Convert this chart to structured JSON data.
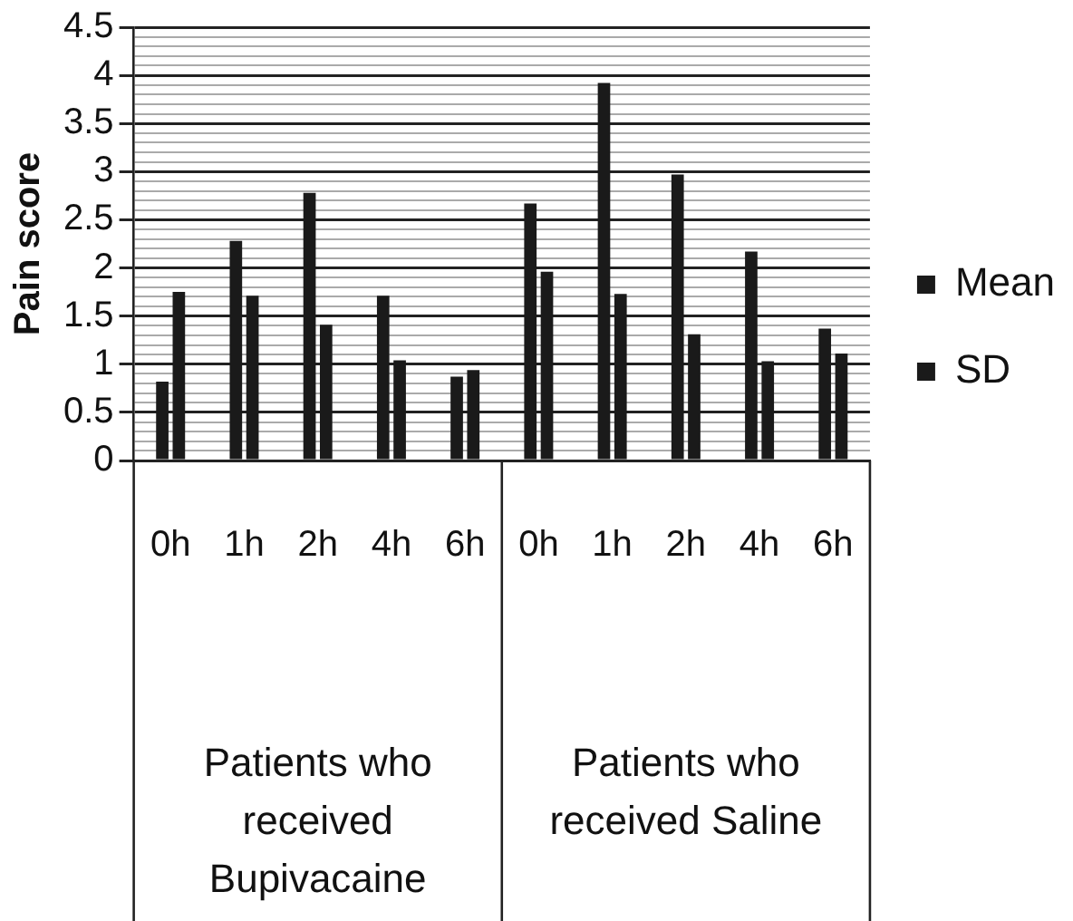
{
  "chart_data": {
    "type": "bar",
    "ylabel": "Pain score",
    "categories": [
      "0h",
      "1h",
      "2h",
      "4h",
      "6h",
      "0h",
      "1h",
      "2h",
      "4h",
      "6h"
    ],
    "series": [
      {
        "name": "Mean",
        "color": "#1a1a1a",
        "values": [
          0.82,
          2.28,
          2.78,
          1.71,
          0.87,
          2.67,
          3.92,
          2.97,
          2.17,
          1.37
        ]
      },
      {
        "name": "SD",
        "color": "#1a1a1a",
        "values": [
          1.75,
          1.71,
          1.41,
          1.04,
          0.94,
          1.96,
          1.73,
          1.31,
          1.03,
          1.11
        ]
      }
    ],
    "ylim": [
      0,
      4.5
    ],
    "yticks": [
      0,
      {
        "value": 0.1,
        "label": null
      },
      {
        "value": 0.2,
        "label": null
      },
      {
        "value": 0.3,
        "label": null
      },
      {
        "value": 0.4,
        "label": null
      },
      0.5,
      {
        "value": 0.6,
        "label": null
      },
      {
        "value": 0.7,
        "label": null
      },
      {
        "value": 0.8,
        "label": null
      },
      {
        "value": 0.9,
        "label": null
      },
      1,
      {
        "value": 1.1,
        "label": null
      },
      {
        "value": 1.2,
        "label": null
      },
      {
        "value": 1.3,
        "label": null
      },
      {
        "value": 1.4,
        "label": null
      },
      1.5,
      {
        "value": 1.6,
        "label": null
      },
      {
        "value": 1.7,
        "label": null
      },
      {
        "value": 1.8,
        "label": null
      },
      {
        "value": 1.9,
        "label": null
      },
      2,
      {
        "value": 2.1,
        "label": null
      },
      {
        "value": 2.2,
        "label": null
      },
      {
        "value": 2.3,
        "label": null
      },
      {
        "value": 2.4,
        "label": null
      },
      2.5,
      {
        "value": 2.6,
        "label": null
      },
      {
        "value": 2.7,
        "label": null
      },
      {
        "value": 2.8,
        "label": null
      },
      {
        "value": 2.9,
        "label": null
      },
      3,
      {
        "value": 3.1,
        "label": null
      },
      {
        "value": 3.2,
        "label": null
      },
      {
        "value": 3.3,
        "label": null
      },
      {
        "value": 3.4,
        "label": null
      },
      3.5,
      {
        "value": 3.6,
        "label": null
      },
      {
        "value": 3.7,
        "label": null
      },
      {
        "value": 3.8,
        "label": null
      },
      {
        "value": 3.9,
        "label": null
      },
      4,
      {
        "value": 4.1,
        "label": null
      },
      {
        "value": 4.2,
        "label": null
      },
      {
        "value": 4.3,
        "label": null
      },
      {
        "value": 4.4,
        "label": null
      },
      4.5
    ],
    "grid": "y",
    "legend": "right",
    "annotations": [
      "Patients who received Bupivacaine",
      "Patients who received Saline"
    ]
  }
}
